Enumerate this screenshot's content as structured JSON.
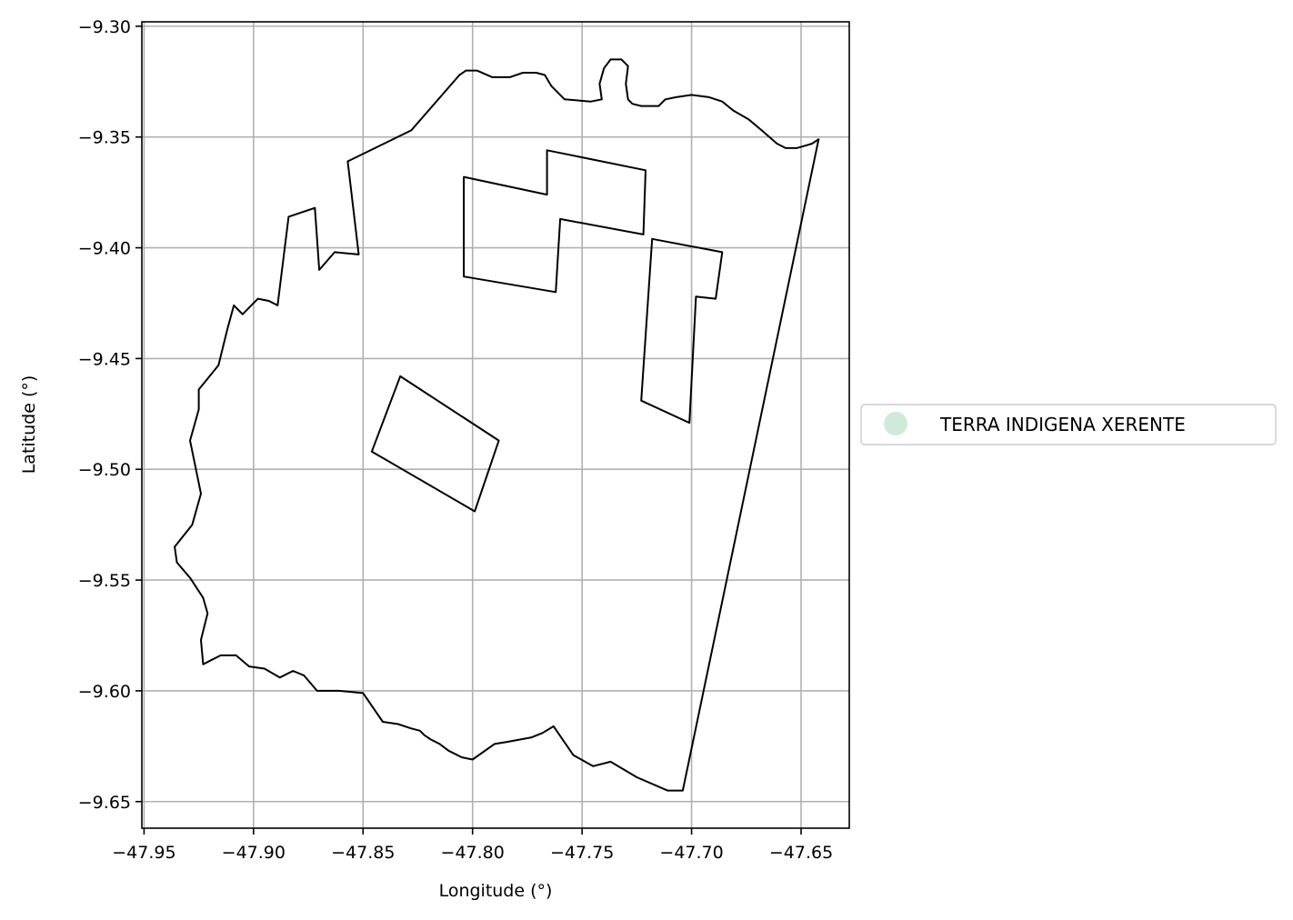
{
  "chart_data": {
    "type": "map",
    "xlabel": "Longitude (°)",
    "ylabel": "Latitude (°)",
    "xlim": [
      -47.951,
      -47.628
    ],
    "ylim": [
      -9.662,
      -9.298
    ],
    "x_ticks": [
      -47.95,
      -47.9,
      -47.85,
      -47.8,
      -47.75,
      -47.7,
      -47.65
    ],
    "y_ticks": [
      -9.3,
      -9.35,
      -9.4,
      -9.45,
      -9.5,
      -9.55,
      -9.6,
      -9.65
    ],
    "x_tick_labels": [
      "−47.95",
      "−47.90",
      "−47.85",
      "−47.80",
      "−47.75",
      "−47.70",
      "−47.65"
    ],
    "y_tick_labels": [
      "−9.30",
      "−9.35",
      "−9.40",
      "−9.45",
      "−9.50",
      "−9.55",
      "−9.60",
      "−9.65"
    ],
    "grid": true,
    "legend": {
      "placement": "right-center",
      "entries": [
        {
          "label": "TERRA INDIGENA XERENTE",
          "color": "#cfeadb"
        }
      ]
    },
    "boundary_color": "#000000",
    "rings": [
      {
        "name": "outer",
        "coords": [
          [
            -47.806,
            -9.322
          ],
          [
            -47.803,
            -9.32
          ],
          [
            -47.798,
            -9.32
          ],
          [
            -47.791,
            -9.323
          ],
          [
            -47.783,
            -9.323
          ],
          [
            -47.777,
            -9.321
          ],
          [
            -47.771,
            -9.321
          ],
          [
            -47.767,
            -9.322
          ],
          [
            -47.764,
            -9.327
          ],
          [
            -47.758,
            -9.333
          ],
          [
            -47.746,
            -9.334
          ],
          [
            -47.741,
            -9.333
          ],
          [
            -47.742,
            -9.326
          ],
          [
            -47.74,
            -9.319
          ],
          [
            -47.737,
            -9.315
          ],
          [
            -47.732,
            -9.315
          ],
          [
            -47.729,
            -9.318
          ],
          [
            -47.73,
            -9.326
          ],
          [
            -47.729,
            -9.333
          ],
          [
            -47.727,
            -9.335
          ],
          [
            -47.723,
            -9.336
          ],
          [
            -47.715,
            -9.336
          ],
          [
            -47.712,
            -9.333
          ],
          [
            -47.707,
            -9.332
          ],
          [
            -47.7,
            -9.331
          ],
          [
            -47.692,
            -9.332
          ],
          [
            -47.686,
            -9.334
          ],
          [
            -47.681,
            -9.338
          ],
          [
            -47.674,
            -9.342
          ],
          [
            -47.668,
            -9.347
          ],
          [
            -47.661,
            -9.353
          ],
          [
            -47.657,
            -9.355
          ],
          [
            -47.652,
            -9.355
          ],
          [
            -47.645,
            -9.353
          ],
          [
            -47.642,
            -9.351
          ],
          [
            -47.704,
            -9.645
          ],
          [
            -47.711,
            -9.645
          ],
          [
            -47.725,
            -9.639
          ],
          [
            -47.737,
            -9.632
          ],
          [
            -47.745,
            -9.634
          ],
          [
            -47.754,
            -9.629
          ],
          [
            -47.763,
            -9.616
          ],
          [
            -47.768,
            -9.619
          ],
          [
            -47.773,
            -9.621
          ],
          [
            -47.784,
            -9.623
          ],
          [
            -47.79,
            -9.624
          ],
          [
            -47.8,
            -9.631
          ],
          [
            -47.805,
            -9.63
          ],
          [
            -47.811,
            -9.627
          ],
          [
            -47.815,
            -9.624
          ],
          [
            -47.819,
            -9.622
          ],
          [
            -47.822,
            -9.62
          ],
          [
            -47.824,
            -9.618
          ],
          [
            -47.828,
            -9.617
          ],
          [
            -47.834,
            -9.615
          ],
          [
            -47.841,
            -9.614
          ],
          [
            -47.85,
            -9.601
          ],
          [
            -47.861,
            -9.6
          ],
          [
            -47.871,
            -9.6
          ],
          [
            -47.877,
            -9.593
          ],
          [
            -47.882,
            -9.591
          ],
          [
            -47.888,
            -9.594
          ],
          [
            -47.895,
            -9.59
          ],
          [
            -47.902,
            -9.589
          ],
          [
            -47.908,
            -9.584
          ],
          [
            -47.915,
            -9.584
          ],
          [
            -47.923,
            -9.588
          ],
          [
            -47.924,
            -9.577
          ],
          [
            -47.921,
            -9.565
          ],
          [
            -47.923,
            -9.558
          ],
          [
            -47.929,
            -9.549
          ],
          [
            -47.935,
            -9.542
          ],
          [
            -47.936,
            -9.535
          ],
          [
            -47.928,
            -9.525
          ],
          [
            -47.924,
            -9.511
          ],
          [
            -47.929,
            -9.487
          ],
          [
            -47.925,
            -9.473
          ],
          [
            -47.925,
            -9.464
          ],
          [
            -47.916,
            -9.453
          ],
          [
            -47.912,
            -9.437
          ],
          [
            -47.909,
            -9.426
          ],
          [
            -47.905,
            -9.43
          ],
          [
            -47.898,
            -9.423
          ],
          [
            -47.893,
            -9.424
          ],
          [
            -47.889,
            -9.426
          ],
          [
            -47.884,
            -9.386
          ],
          [
            -47.872,
            -9.382
          ],
          [
            -47.87,
            -9.41
          ],
          [
            -47.863,
            -9.402
          ],
          [
            -47.852,
            -9.403
          ],
          [
            -47.857,
            -9.361
          ],
          [
            -47.828,
            -9.347
          ],
          [
            -47.806,
            -9.322
          ]
        ]
      },
      {
        "name": "hole-north",
        "coords": [
          [
            -47.804,
            -9.368
          ],
          [
            -47.766,
            -9.376
          ],
          [
            -47.766,
            -9.356
          ],
          [
            -47.721,
            -9.365
          ],
          [
            -47.722,
            -9.394
          ],
          [
            -47.76,
            -9.387
          ],
          [
            -47.762,
            -9.42
          ],
          [
            -47.804,
            -9.413
          ],
          [
            -47.804,
            -9.368
          ]
        ]
      },
      {
        "name": "hole-east",
        "coords": [
          [
            -47.718,
            -9.396
          ],
          [
            -47.686,
            -9.402
          ],
          [
            -47.689,
            -9.423
          ],
          [
            -47.698,
            -9.422
          ],
          [
            -47.701,
            -9.479
          ],
          [
            -47.723,
            -9.469
          ],
          [
            -47.718,
            -9.396
          ]
        ]
      },
      {
        "name": "hole-southwest",
        "coords": [
          [
            -47.833,
            -9.458
          ],
          [
            -47.788,
            -9.487
          ],
          [
            -47.799,
            -9.519
          ],
          [
            -47.846,
            -9.492
          ],
          [
            -47.833,
            -9.458
          ]
        ]
      }
    ]
  }
}
